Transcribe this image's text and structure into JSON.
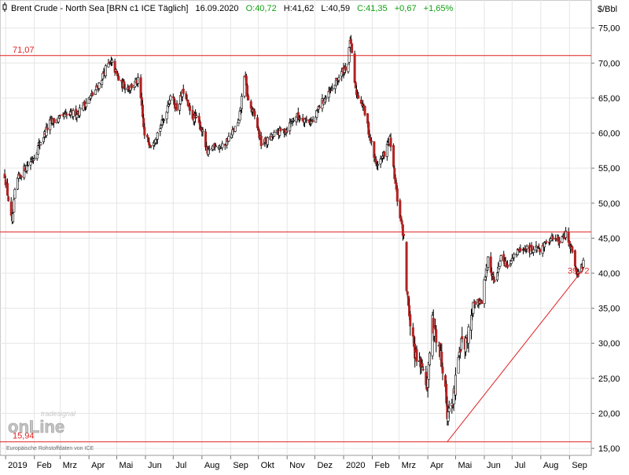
{
  "header": {
    "icon": "candlestick-icon",
    "title": "Brent Crude - North Sea [BRN c1 ICE  Täglich]",
    "date": "16.09.2020",
    "open_label": "O:40,72",
    "high_label": "H:41,62",
    "low_label": "L:40,59",
    "close_label": "C:41,35",
    "change_label": "+0,67",
    "change_pct_label": "+1,65%",
    "change_color": "#10a010"
  },
  "colors": {
    "up_candle": "#ffffff",
    "down_candle": "#b22222",
    "wick": "#000000",
    "line": "#e02020",
    "grid": "#e6e6e6"
  },
  "watermark": {
    "brand_top": "tradesignal",
    "brand_main": "onLine",
    "source": "Europäische Rohstoffdaten von ICE"
  },
  "chart_data": {
    "type": "candlestick",
    "title": "Brent Crude - North Sea [BRN c1 ICE  Täglich]",
    "y_unit": "$/Bbl",
    "ylim": [
      14.0,
      79.0
    ],
    "y_ticks": [
      15,
      20,
      25,
      30,
      35,
      40,
      45,
      50,
      55,
      60,
      65,
      70,
      75
    ],
    "y_tick_labels": [
      "15,00",
      "20,00",
      "25,00",
      "30,00",
      "35,00",
      "40,00",
      "45,00",
      "50,00",
      "55,00",
      "60,00",
      "65,00",
      "70,00",
      "75,00"
    ],
    "x_month_labels": [
      "2019",
      "Feb",
      "Mrz",
      "Apr",
      "Mai",
      "Jun",
      "Jul",
      "Aug",
      "Sep",
      "Okt",
      "Nov",
      "Dez",
      "2020",
      "Feb",
      "Mrz",
      "Apr",
      "Mai",
      "Jun",
      "Jul",
      "Aug",
      "Sep"
    ],
    "x_month_dates": [
      "2019-01",
      "2019-02",
      "2019-03",
      "2019-04",
      "2019-05",
      "2019-06",
      "2019-07",
      "2019-08",
      "2019-09",
      "2019-10",
      "2019-11",
      "2019-12",
      "2020-01",
      "2020-02",
      "2020-03",
      "2020-04",
      "2020-05",
      "2020-06",
      "2020-07",
      "2020-08",
      "2020-09"
    ],
    "horizontal_levels": [
      {
        "value": 71.07,
        "label": "71,07"
      },
      {
        "value": 45.9,
        "label": ""
      },
      {
        "value": 15.94,
        "label": "15,94"
      }
    ],
    "trendline": {
      "from": {
        "date": "2020-04-22",
        "value": 15.94
      },
      "to": {
        "date": "2020-09-16",
        "value": 40.6
      }
    },
    "last_value_label": "39,72",
    "price_path": [
      {
        "date": "2018-12-31",
        "close": 54.0
      },
      {
        "date": "2019-01-04",
        "close": 50.5
      },
      {
        "date": "2019-01-08",
        "close": 47.0
      },
      {
        "date": "2019-01-12",
        "close": 53.0
      },
      {
        "date": "2019-01-22",
        "close": 55.0
      },
      {
        "date": "2019-01-31",
        "close": 56.5
      },
      {
        "date": "2019-02-05",
        "close": 58.0
      },
      {
        "date": "2019-02-18",
        "close": 61.5
      },
      {
        "date": "2019-02-28",
        "close": 62.0
      },
      {
        "date": "2019-03-08",
        "close": 62.5
      },
      {
        "date": "2019-03-20",
        "close": 63.0
      },
      {
        "date": "2019-04-05",
        "close": 65.5
      },
      {
        "date": "2019-04-12",
        "close": 67.0
      },
      {
        "date": "2019-04-20",
        "close": 69.5
      },
      {
        "date": "2019-04-26",
        "close": 70.0
      },
      {
        "date": "2019-05-05",
        "close": 67.0
      },
      {
        "date": "2019-05-15",
        "close": 66.5
      },
      {
        "date": "2019-05-25",
        "close": 67.5
      },
      {
        "date": "2019-05-31",
        "close": 59.5
      },
      {
        "date": "2019-06-07",
        "close": 58.5
      },
      {
        "date": "2019-06-14",
        "close": 60.0
      },
      {
        "date": "2019-06-21",
        "close": 62.0
      },
      {
        "date": "2019-06-28",
        "close": 65.5
      },
      {
        "date": "2019-07-05",
        "close": 63.5
      },
      {
        "date": "2019-07-12",
        "close": 66.0
      },
      {
        "date": "2019-07-20",
        "close": 62.5
      },
      {
        "date": "2019-07-26",
        "close": 62.0
      },
      {
        "date": "2019-08-01",
        "close": 60.5
      },
      {
        "date": "2019-08-07",
        "close": 57.0
      },
      {
        "date": "2019-08-15",
        "close": 58.5
      },
      {
        "date": "2019-08-23",
        "close": 58.0
      },
      {
        "date": "2019-08-31",
        "close": 59.5
      },
      {
        "date": "2019-09-10",
        "close": 61.5
      },
      {
        "date": "2019-09-16",
        "close": 68.5
      },
      {
        "date": "2019-09-20",
        "close": 64.5
      },
      {
        "date": "2019-09-28",
        "close": 62.0
      },
      {
        "date": "2019-10-04",
        "close": 58.5
      },
      {
        "date": "2019-10-12",
        "close": 59.0
      },
      {
        "date": "2019-10-20",
        "close": 60.0
      },
      {
        "date": "2019-10-31",
        "close": 60.5
      },
      {
        "date": "2019-11-10",
        "close": 62.5
      },
      {
        "date": "2019-11-20",
        "close": 62.0
      },
      {
        "date": "2019-11-30",
        "close": 61.5
      },
      {
        "date": "2019-12-06",
        "close": 64.0
      },
      {
        "date": "2019-12-16",
        "close": 65.5
      },
      {
        "date": "2019-12-27",
        "close": 68.0
      },
      {
        "date": "2020-01-06",
        "close": 70.0
      },
      {
        "date": "2020-01-08",
        "close": 73.5
      },
      {
        "date": "2020-01-14",
        "close": 66.0
      },
      {
        "date": "2020-01-22",
        "close": 64.0
      },
      {
        "date": "2020-01-31",
        "close": 58.5
      },
      {
        "date": "2020-02-05",
        "close": 55.5
      },
      {
        "date": "2020-02-12",
        "close": 56.5
      },
      {
        "date": "2020-02-20",
        "close": 59.0
      },
      {
        "date": "2020-02-28",
        "close": 50.5
      },
      {
        "date": "2020-03-06",
        "close": 45.0
      },
      {
        "date": "2020-03-09",
        "close": 37.5
      },
      {
        "date": "2020-03-18",
        "close": 28.5
      },
      {
        "date": "2020-03-25",
        "close": 27.0
      },
      {
        "date": "2020-03-31",
        "close": 23.5
      },
      {
        "date": "2020-04-06",
        "close": 33.0
      },
      {
        "date": "2020-04-14",
        "close": 29.0
      },
      {
        "date": "2020-04-21",
        "close": 22.0
      },
      {
        "date": "2020-04-22",
        "close": 19.5
      },
      {
        "date": "2020-04-28",
        "close": 21.5
      },
      {
        "date": "2020-05-05",
        "close": 29.5
      },
      {
        "date": "2020-05-12",
        "close": 30.0
      },
      {
        "date": "2020-05-20",
        "close": 35.5
      },
      {
        "date": "2020-05-29",
        "close": 36.0
      },
      {
        "date": "2020-06-05",
        "close": 42.0
      },
      {
        "date": "2020-06-12",
        "close": 38.5
      },
      {
        "date": "2020-06-19",
        "close": 42.0
      },
      {
        "date": "2020-06-26",
        "close": 41.0
      },
      {
        "date": "2020-07-06",
        "close": 43.0
      },
      {
        "date": "2020-07-15",
        "close": 43.5
      },
      {
        "date": "2020-07-24",
        "close": 43.3
      },
      {
        "date": "2020-07-31",
        "close": 43.5
      },
      {
        "date": "2020-08-07",
        "close": 44.5
      },
      {
        "date": "2020-08-14",
        "close": 45.0
      },
      {
        "date": "2020-08-21",
        "close": 44.5
      },
      {
        "date": "2020-08-28",
        "close": 45.5
      },
      {
        "date": "2020-09-02",
        "close": 44.0
      },
      {
        "date": "2020-09-07",
        "close": 41.0
      },
      {
        "date": "2020-09-10",
        "close": 39.7
      },
      {
        "date": "2020-09-16",
        "close": 41.35
      }
    ],
    "gap": {
      "from": "2020-03-06",
      "to": "2020-03-09"
    }
  }
}
